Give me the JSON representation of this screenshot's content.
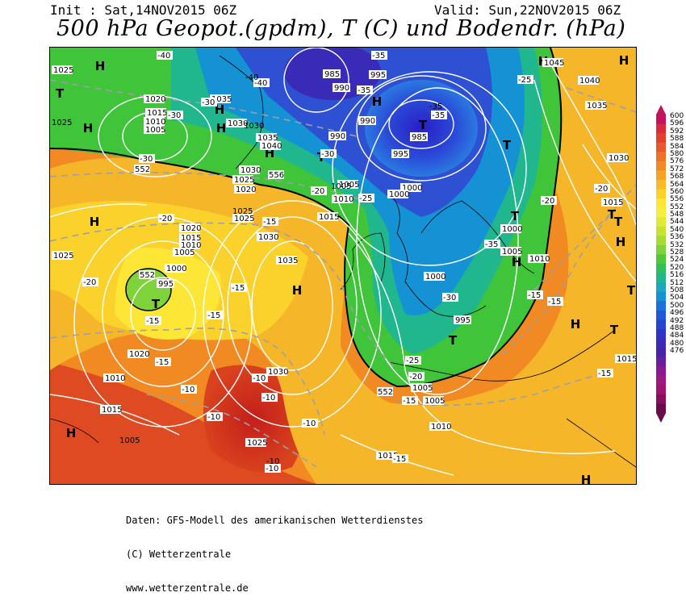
{
  "header": {
    "init": "Init : Sat,14NOV2015 06Z",
    "valid": "Valid: Sun,22NOV2015 06Z",
    "title": "500 hPa Geopot.(gpdm), T (C) und Bodendr. (hPa)"
  },
  "colorbar": {
    "labels": [
      "600",
      "596",
      "592",
      "588",
      "584",
      "580",
      "576",
      "572",
      "568",
      "564",
      "560",
      "556",
      "552",
      "548",
      "544",
      "540",
      "536",
      "532",
      "528",
      "524",
      "520",
      "516",
      "512",
      "508",
      "504",
      "500",
      "496",
      "492",
      "488",
      "484",
      "480",
      "476"
    ],
    "colors": [
      "#c4135e",
      "#d92b3c",
      "#e2402c",
      "#e8582a",
      "#ee7125",
      "#f08a22",
      "#f5a324",
      "#f8ba26",
      "#fbd22c",
      "#fde636",
      "#f5ee3d",
      "#e0ea38",
      "#c8e234",
      "#a8dc32",
      "#7fd33a",
      "#4ec838",
      "#2fbf5e",
      "#20b68e",
      "#17aab8",
      "#1592d4",
      "#1a72da",
      "#1f58d8",
      "#2644d2",
      "#2e34c8",
      "#3a2ab8",
      "#4a22a8",
      "#6a1e9c",
      "#8a1a90",
      "#9e1882",
      "#a01470",
      "#86105e",
      "#6a0c4c"
    ]
  },
  "map_labels": {
    "highs": [
      "H",
      "H",
      "H",
      "H",
      "H",
      "H",
      "H",
      "H",
      "H",
      "H",
      "H",
      "H",
      "H",
      "H",
      "H"
    ],
    "lows": [
      "T",
      "T",
      "T",
      "T",
      "T",
      "T",
      "T",
      "T",
      "T",
      "T",
      "T"
    ],
    "isobars": [
      "1025",
      "1025",
      "1020",
      "1015",
      "1010",
      "1005",
      "1030",
      "1035",
      "1040",
      "1030",
      "1025",
      "1020",
      "1035",
      "985",
      "990",
      "990",
      "995",
      "990",
      "985",
      "995",
      "1000",
      "1005",
      "1010",
      "1015",
      "1045",
      "1040",
      "1035",
      "1030",
      "1015",
      "1025",
      "1020",
      "1015",
      "1010",
      "1005",
      "1000",
      "995",
      "1025",
      "1030",
      "1035",
      "1030",
      "1025",
      "1020",
      "1015",
      "1010",
      "1005",
      "1000",
      "995",
      "1000",
      "1005",
      "1010",
      "1015",
      "1010",
      "1005",
      "1015",
      "1000",
      "1005",
      "1005",
      "1030",
      "1025"
    ],
    "temps": [
      "-40",
      "-40",
      "-35",
      "-35",
      "-35",
      "-30",
      "-30",
      "-30",
      "-25",
      "-25",
      "-20",
      "-20",
      "-20",
      "-20",
      "-20",
      "-15",
      "-15",
      "-15",
      "-15",
      "-15",
      "-15",
      "-15",
      "-10",
      "-10",
      "-10",
      "-10",
      "-10",
      "-10",
      "-35",
      "-30",
      "-25",
      "-20",
      "-15",
      "-15",
      "-15",
      "-10",
      "-40",
      "-35",
      "-30"
    ],
    "geopot": [
      "552",
      "552",
      "552",
      "556"
    ]
  },
  "credits": {
    "line1": "Daten: GFS-Modell des amerikanischen Wetterdienstes",
    "line2": "(C) Wetterzentrale",
    "line3": "www.wetterzentrale.de"
  }
}
